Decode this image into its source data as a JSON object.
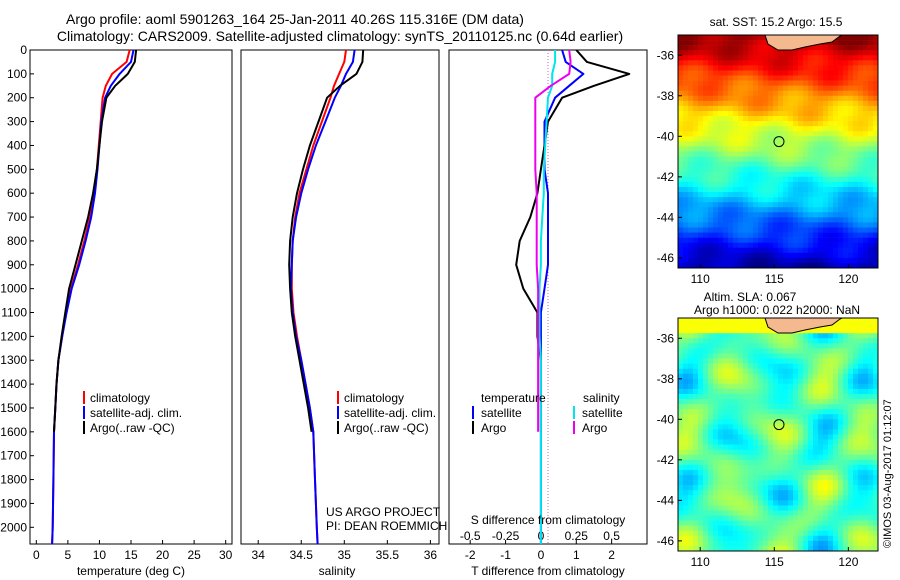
{
  "header": {
    "line1": "Argo profile: aoml 5901263_164 25-Jan-2011 40.26S 115.316E (DM data)",
    "line2": "Climatology: CARS2009. Satellite-adjusted climatology: synTS_20110125.nc (0.64d earlier)"
  },
  "colors": {
    "climatology": "#ff0000",
    "satellite": "#0000ff",
    "argo": "#000000",
    "salinity_satellite": "#00e5ee",
    "salinity_argo": "#ee00ee"
  },
  "chart_data": [
    {
      "type": "line",
      "panel": "temperature",
      "xlabel": "temperature (deg C)",
      "ylabel": "",
      "xlim": [
        -1,
        31
      ],
      "ylim": [
        2070,
        0
      ],
      "xticks": [
        0,
        5,
        10,
        15,
        20,
        25,
        30
      ],
      "yticks": [
        0,
        100,
        200,
        300,
        400,
        500,
        600,
        700,
        800,
        900,
        1000,
        1100,
        1200,
        1300,
        1400,
        1500,
        1600,
        1700,
        1800,
        1900,
        2000
      ],
      "legend": [
        "climatology",
        "satellite-adj. clim.",
        "Argo(..raw -QC)"
      ],
      "legend_position": "lower-right",
      "series": [
        {
          "name": "climatology",
          "color": "#ff0000",
          "x": [
            14.8,
            14.3,
            12.0,
            11.0,
            10.5,
            10.2,
            9.9,
            9.6,
            9.1,
            8.5,
            7.6,
            6.6,
            5.5,
            4.7,
            4.1,
            3.5,
            3.2,
            3.0,
            2.8,
            2.7,
            2.6,
            2.5
          ],
          "y": [
            0,
            50,
            100,
            150,
            200,
            300,
            400,
            500,
            600,
            700,
            800,
            900,
            1000,
            1100,
            1200,
            1300,
            1400,
            1500,
            1600,
            1800,
            2000,
            2070
          ]
        },
        {
          "name": "satellite-adj. clim.",
          "color": "#0000ff",
          "x": [
            15.4,
            15.0,
            13.2,
            11.8,
            10.9,
            10.3,
            10.0,
            9.7,
            9.3,
            8.7,
            7.8,
            6.8,
            5.6,
            4.8,
            4.1,
            3.5,
            3.2,
            3.0,
            2.8,
            2.7,
            2.6,
            2.5
          ],
          "y": [
            0,
            50,
            100,
            150,
            200,
            300,
            400,
            500,
            600,
            700,
            800,
            900,
            1000,
            1100,
            1200,
            1300,
            1400,
            1500,
            1600,
            1800,
            2000,
            2070
          ]
        },
        {
          "name": "Argo(..raw -QC)",
          "color": "#000000",
          "x": [
            15.8,
            15.6,
            14.5,
            12.5,
            11.1,
            10.4,
            10.0,
            9.6,
            9.0,
            8.2,
            7.2,
            6.2,
            5.2,
            4.6,
            4.0,
            3.5,
            3.2,
            3.0,
            2.8
          ],
          "y": [
            0,
            50,
            100,
            150,
            200,
            300,
            400,
            500,
            600,
            700,
            800,
            900,
            1000,
            1100,
            1200,
            1300,
            1400,
            1500,
            1600
          ]
        }
      ]
    },
    {
      "type": "line",
      "panel": "salinity",
      "xlabel": "salinity",
      "ylabel": "",
      "xlim": [
        33.8,
        36.1
      ],
      "ylim": [
        2070,
        0
      ],
      "xticks": [
        34,
        34.5,
        35,
        35.5,
        36
      ],
      "legend": [
        "climatology",
        "satellite-adj. clim.",
        "Argo(..raw -QC)"
      ],
      "legend_position": "lower-right",
      "annotations": [
        "US ARGO PROJECT",
        "PI: DEAN ROEMMICH"
      ],
      "series": [
        {
          "name": "climatology",
          "color": "#ff0000",
          "x": [
            35.02,
            35.0,
            34.94,
            34.88,
            34.84,
            34.74,
            34.64,
            34.56,
            34.48,
            34.43,
            34.4,
            34.39,
            34.39,
            34.41,
            34.45,
            34.5,
            34.55,
            34.6,
            34.64,
            34.66,
            34.68,
            34.69
          ],
          "y": [
            0,
            50,
            100,
            150,
            200,
            300,
            400,
            500,
            600,
            700,
            800,
            900,
            1000,
            1100,
            1200,
            1300,
            1400,
            1500,
            1600,
            1800,
            2000,
            2070
          ]
        },
        {
          "name": "satellite-adj. clim.",
          "color": "#0000ff",
          "x": [
            35.12,
            35.1,
            35.02,
            34.96,
            34.89,
            34.78,
            34.67,
            34.58,
            34.5,
            34.44,
            34.4,
            34.39,
            34.38,
            34.4,
            34.44,
            34.5,
            34.55,
            34.6,
            34.64,
            34.66,
            34.68,
            34.69
          ],
          "y": [
            0,
            50,
            100,
            150,
            200,
            300,
            400,
            500,
            600,
            700,
            800,
            900,
            1000,
            1100,
            1200,
            1300,
            1400,
            1500,
            1600,
            1800,
            2000,
            2070
          ]
        },
        {
          "name": "Argo(..raw -QC)",
          "color": "#000000",
          "x": [
            35.22,
            35.21,
            35.14,
            34.95,
            34.8,
            34.7,
            34.6,
            34.52,
            34.45,
            34.4,
            34.37,
            34.36,
            34.37,
            34.39,
            34.43,
            34.48,
            34.53,
            34.58,
            34.62
          ],
          "y": [
            0,
            50,
            100,
            150,
            200,
            300,
            400,
            500,
            600,
            700,
            800,
            900,
            1000,
            1100,
            1200,
            1300,
            1400,
            1500,
            1600
          ]
        }
      ]
    },
    {
      "type": "line",
      "panel": "difference",
      "xlabel": "T difference from climatology",
      "xlabel_top": "S difference from climatology",
      "xlim": [
        -2.6,
        3.0
      ],
      "ylim": [
        2070,
        0
      ],
      "xticks": [
        -2,
        -1,
        0,
        1,
        2
      ],
      "xticks_salinity": [
        -0.5,
        -0.25,
        0,
        0.25,
        0.5
      ],
      "legend_temperature_title": "temperature",
      "legend_salinity_title": "salinity",
      "legend": [
        "satellite",
        "Argo",
        "satellite",
        "Argo"
      ],
      "series": [
        {
          "name": "satellite",
          "group": "temperature",
          "color": "#0000ff",
          "x": [
            0.6,
            0.7,
            1.2,
            0.8,
            0.4,
            0.1,
            0.1,
            0.1,
            0.2,
            0.2,
            0.2,
            0.2,
            0.1,
            0.0,
            0.0,
            0.0,
            0.0,
            0.0,
            0.0,
            0.0,
            0.0,
            0.0
          ],
          "y": [
            0,
            50,
            100,
            150,
            200,
            300,
            400,
            500,
            600,
            700,
            800,
            900,
            1000,
            1100,
            1200,
            1300,
            1400,
            1500,
            1600,
            1800,
            2000,
            2070
          ]
        },
        {
          "name": "Argo",
          "group": "temperature",
          "color": "#000000",
          "x": [
            1.0,
            1.3,
            2.5,
            1.5,
            0.6,
            0.2,
            0.1,
            0.0,
            -0.1,
            -0.3,
            -0.6,
            -0.7,
            -0.5,
            -0.1,
            -0.1,
            0.0,
            0.0,
            0.0,
            0.0
          ],
          "y": [
            0,
            50,
            100,
            150,
            200,
            300,
            400,
            500,
            600,
            700,
            800,
            900,
            1000,
            1100,
            1200,
            1300,
            1400,
            1500,
            1600
          ]
        },
        {
          "name": "satellite",
          "group": "salinity",
          "color": "#00e5ee",
          "x": [
            0.1,
            0.1,
            0.08,
            0.08,
            0.05,
            0.04,
            0.03,
            0.02,
            0.02,
            0.01,
            0.0,
            0.0,
            -0.01,
            -0.01,
            -0.01,
            0.0,
            0.0,
            0.0,
            0.0,
            0.0,
            0.0,
            0.0
          ],
          "y": [
            0,
            50,
            100,
            150,
            200,
            300,
            400,
            500,
            600,
            700,
            800,
            900,
            1000,
            1100,
            1200,
            1300,
            1400,
            1500,
            1600,
            1800,
            2000,
            2070
          ]
        },
        {
          "name": "Argo",
          "group": "salinity",
          "color": "#ee00ee",
          "x": [
            0.2,
            0.21,
            0.2,
            0.07,
            -0.04,
            -0.04,
            -0.04,
            -0.04,
            -0.03,
            -0.03,
            -0.03,
            -0.03,
            -0.02,
            -0.02,
            -0.02,
            -0.02,
            -0.02,
            -0.02,
            -0.02
          ],
          "y": [
            0,
            50,
            100,
            150,
            200,
            300,
            400,
            500,
            600,
            700,
            800,
            900,
            1000,
            1100,
            1200,
            1300,
            1400,
            1500,
            1600
          ]
        }
      ]
    },
    {
      "type": "heatmap",
      "panel": "sst-map",
      "title": "sat. SST: 15.2 Argo: 15.5",
      "xlim": [
        108.5,
        122
      ],
      "ylim": [
        -46.5,
        -35
      ],
      "xticks": [
        110,
        115,
        120
      ],
      "yticks": [
        -36,
        -38,
        -40,
        -42,
        -44,
        -46
      ],
      "marker": {
        "lon": 115.316,
        "lat": -40.26
      },
      "colormap": "jet"
    },
    {
      "type": "heatmap",
      "panel": "sla-map",
      "title_line1": "Altim. SLA: 0.067",
      "title_line2": "Argo h1000: 0.022 h2000: NaN",
      "xlim": [
        108.5,
        122
      ],
      "ylim": [
        -46.5,
        -35
      ],
      "xticks": [
        110,
        115,
        120
      ],
      "yticks": [
        -36,
        -38,
        -40,
        -42,
        -44,
        -46
      ],
      "marker": {
        "lon": 115.316,
        "lat": -40.26
      },
      "colormap": "jet"
    }
  ],
  "credit": "©IMOS 03-Aug-2017 01:12:07"
}
